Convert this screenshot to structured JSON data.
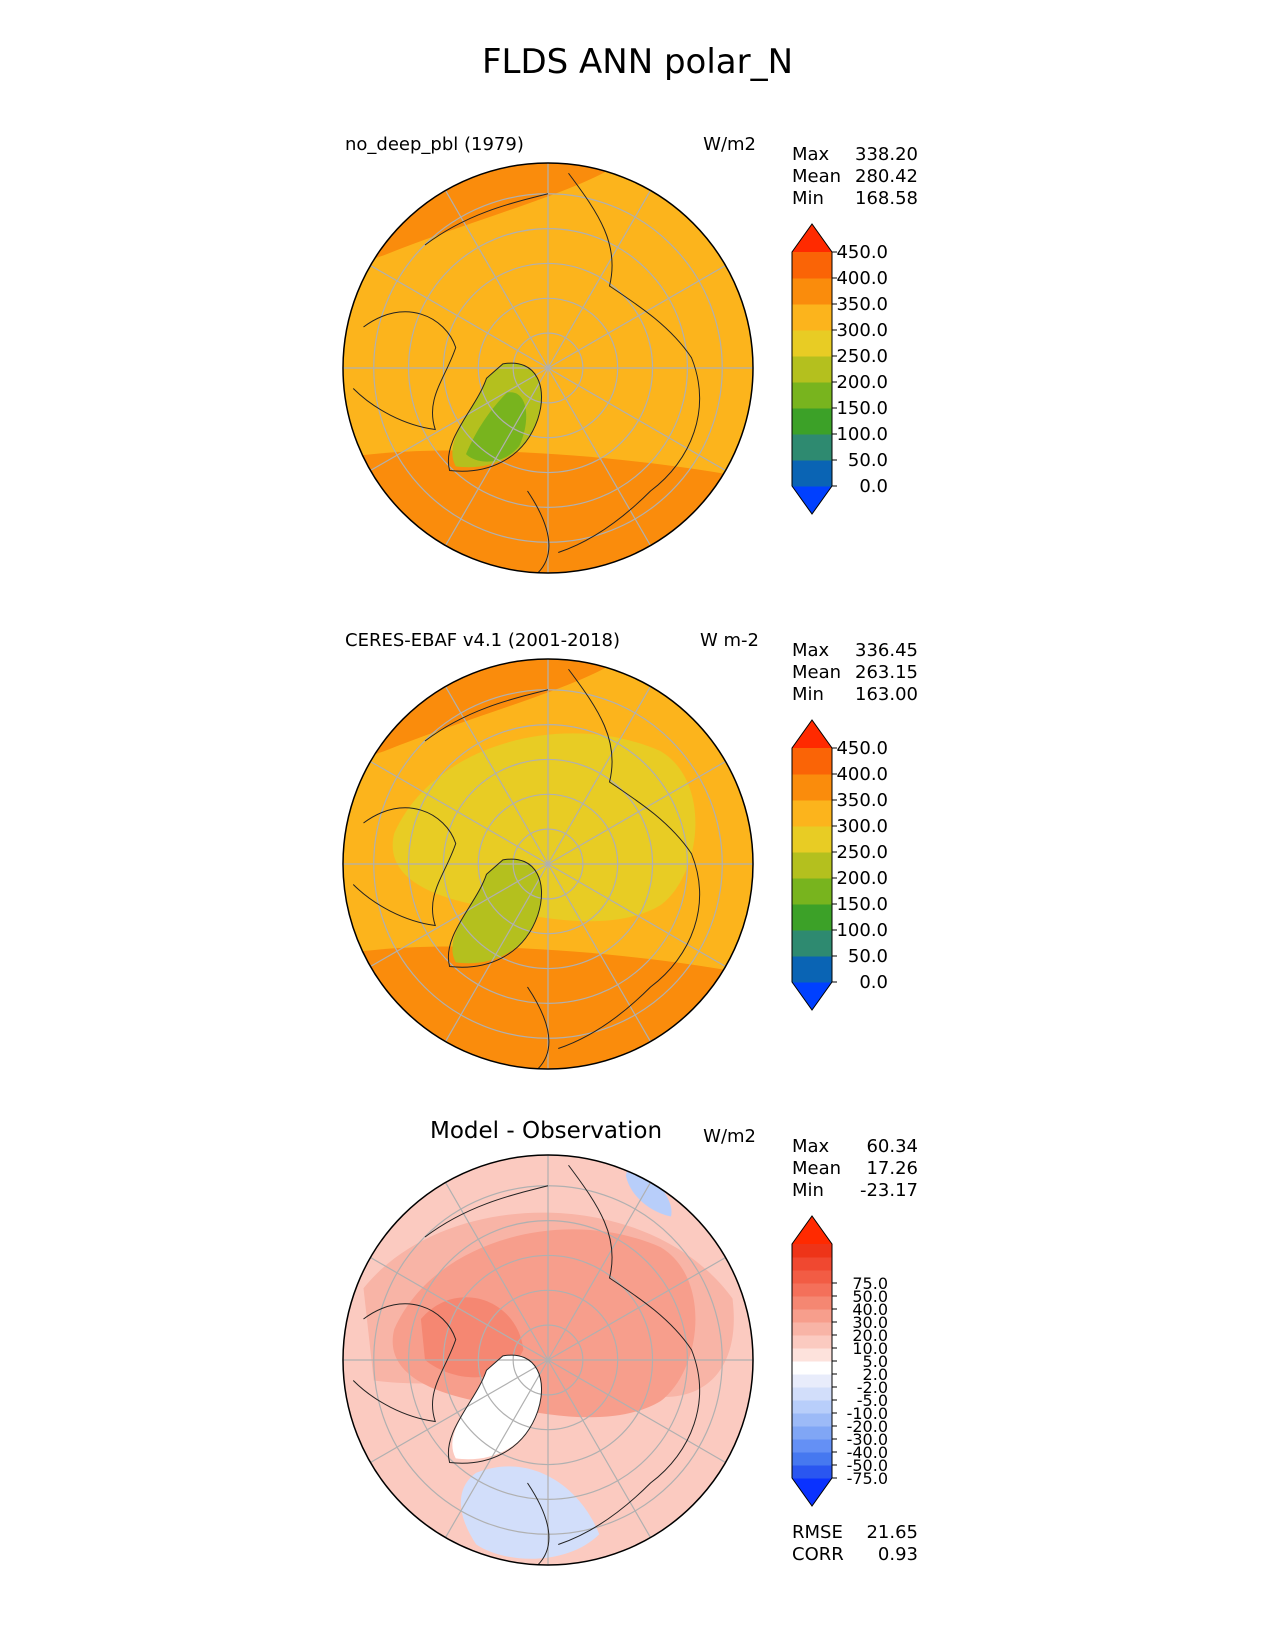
{
  "title": "FLDS ANN polar_N",
  "colors": {
    "test_levels": [
      "#0040ff",
      "#0a64b4",
      "#2e8a70",
      "#3ca128",
      "#78b41e",
      "#b4c01e",
      "#e8cc24",
      "#fcb41c",
      "#fa8c0c",
      "#fa6406",
      "#ff2a00"
    ],
    "diff_levels": [
      "#0a32ff",
      "#2a56f0",
      "#4678f0",
      "#6490f5",
      "#80a6f5",
      "#9cbaf7",
      "#b8cefa",
      "#d2defa",
      "#e8ecfb",
      "#ffffff",
      "#fde2dc",
      "#fbcac0",
      "#f8b4a6",
      "#f79e8c",
      "#f58772",
      "#f4705a",
      "#f25c44",
      "#f04830",
      "#ee3418",
      "#ff2a00"
    ],
    "grid": "#b0b0b0"
  },
  "chart_data": [
    {
      "type": "heatmap",
      "projection": "north-polar-stereographic",
      "title": "no_deep_pbl (1979)",
      "units": "W/m2",
      "stats": [
        {
          "label": "Max",
          "value": "338.20"
        },
        {
          "label": "Mean",
          "value": "280.42"
        },
        {
          "label": "Min",
          "value": "168.58"
        }
      ],
      "colorbar": {
        "levels": [
          0,
          50,
          100,
          150,
          200,
          250,
          300,
          350,
          400,
          450
        ],
        "tick_labels": [
          "0.0",
          "50.0",
          "100.0",
          "150.0",
          "200.0",
          "250.0",
          "300.0",
          "350.0",
          "400.0",
          "450.0"
        ],
        "extend": "both"
      },
      "field": {
        "background": 300,
        "regions": [
          {
            "value": 350,
            "desc": "southern rim band"
          },
          {
            "value": 350,
            "desc": "north-west rim"
          },
          {
            "value": 200,
            "desc": "greenland"
          },
          {
            "value": 150,
            "desc": "greenland core"
          }
        ]
      }
    },
    {
      "type": "heatmap",
      "projection": "north-polar-stereographic",
      "title": "CERES-EBAF v4.1 (2001-2018)",
      "units": "W m-2",
      "stats": [
        {
          "label": "Max",
          "value": "336.45"
        },
        {
          "label": "Mean",
          "value": "263.15"
        },
        {
          "label": "Min",
          "value": "163.00"
        }
      ],
      "colorbar": {
        "levels": [
          0,
          50,
          100,
          150,
          200,
          250,
          300,
          350,
          400,
          450
        ],
        "tick_labels": [
          "0.0",
          "50.0",
          "100.0",
          "150.0",
          "200.0",
          "250.0",
          "300.0",
          "350.0",
          "400.0",
          "450.0"
        ],
        "extend": "both"
      },
      "field": {
        "background": 300,
        "regions": [
          {
            "value": 350,
            "desc": "southern rim band"
          },
          {
            "value": 350,
            "desc": "north-west rim"
          },
          {
            "value": 250,
            "desc": "arctic interior"
          },
          {
            "value": 200,
            "desc": "greenland"
          }
        ]
      }
    },
    {
      "type": "heatmap",
      "projection": "north-polar-stereographic",
      "title": "Model - Observation",
      "units": "W/m2",
      "stats": [
        {
          "label": "Max",
          "value": "60.34"
        },
        {
          "label": "Mean",
          "value": "17.26"
        },
        {
          "label": "Min",
          "value": "-23.17"
        }
      ],
      "colorbar": {
        "levels": [
          -75,
          -50,
          -40,
          -30,
          -20,
          -10,
          -5,
          -2,
          2,
          5,
          10,
          20,
          30,
          40,
          50,
          75
        ],
        "tick_labels": [
          "-75.0",
          "-50.0",
          "-40.0",
          "-30.0",
          "-20.0",
          "-10.0",
          "-5.0",
          "-2.0",
          "2.0",
          "5.0",
          "10.0",
          "20.0",
          "30.0",
          "40.0",
          "50.0",
          "75.0"
        ],
        "extend": "both"
      },
      "field": {
        "background": 10,
        "regions": [
          {
            "value": 20,
            "desc": "mid band"
          },
          {
            "value": 30,
            "desc": "arctic interior"
          },
          {
            "value": 40,
            "desc": "canadian archipelago"
          },
          {
            "value": 2,
            "desc": "greenland"
          },
          {
            "value": -5,
            "desc": "north atlantic rim"
          },
          {
            "value": -10,
            "desc": "north-east patch"
          }
        ]
      },
      "metrics": [
        {
          "label": "RMSE",
          "value": "21.65"
        },
        {
          "label": "CORR",
          "value": "0.93"
        }
      ]
    }
  ]
}
